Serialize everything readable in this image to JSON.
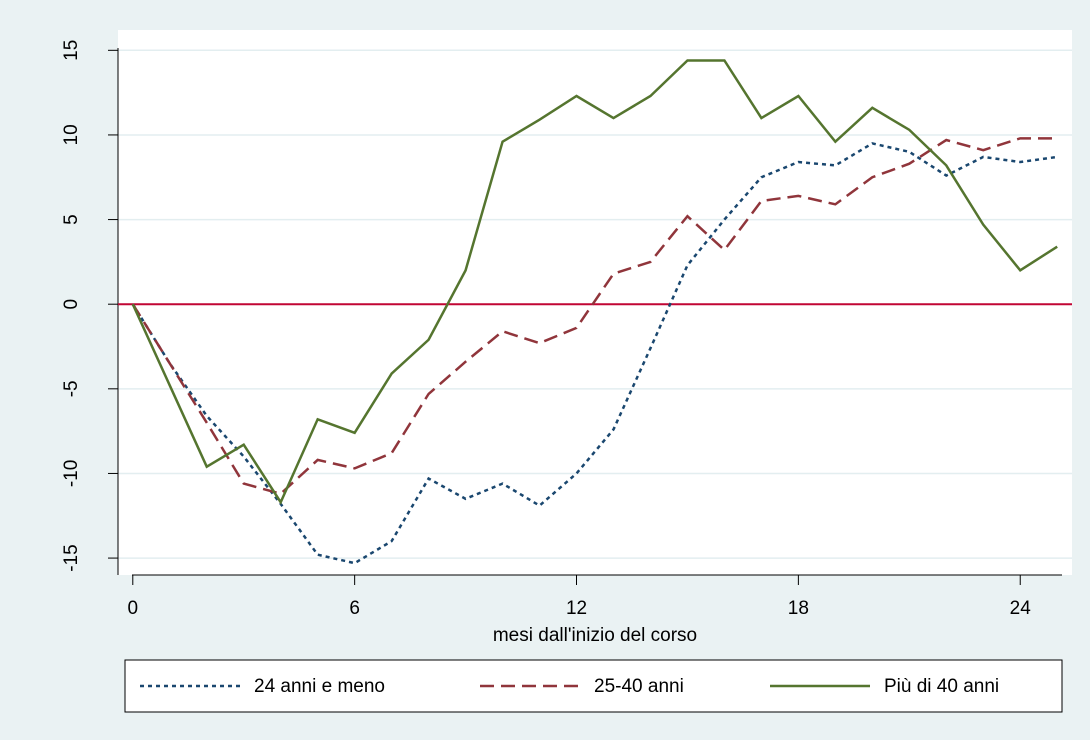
{
  "chart_data": {
    "type": "line",
    "x_label": "mesi dall'inizio del corso",
    "x": [
      0,
      1,
      2,
      3,
      4,
      5,
      6,
      7,
      8,
      9,
      10,
      11,
      12,
      13,
      14,
      15,
      16,
      17,
      18,
      19,
      20,
      21,
      22,
      23,
      24,
      25
    ],
    "series": [
      {
        "name": "24 anni e meno",
        "color": "#1a476f",
        "dash": "dotted",
        "values": [
          0,
          -3.5,
          -6.6,
          -9,
          -11.8,
          -14.8,
          -15.3,
          -14,
          -10.3,
          -11.5,
          -10.6,
          -11.9,
          -10,
          -7.4,
          -2.6,
          2.3,
          5,
          7.5,
          8.4,
          8.2,
          9.5,
          9,
          7.6,
          8.7,
          8.4,
          8.7
        ]
      },
      {
        "name": "25-40 anni",
        "color": "#90353b",
        "dash": "dashed",
        "values": [
          0,
          -3.5,
          -7,
          -10.6,
          -11.2,
          -9.2,
          -9.7,
          -8.8,
          -5.3,
          -3.4,
          -1.6,
          -2.3,
          -1.4,
          1.8,
          2.5,
          5.2,
          3.2,
          6.1,
          6.4,
          5.9,
          7.5,
          8.3,
          9.7,
          9.1,
          9.8,
          9.8
        ]
      },
      {
        "name": "Più di 40 anni",
        "color": "#55752f",
        "dash": "solid",
        "values": [
          0,
          -4.8,
          -9.6,
          -8.3,
          -11.7,
          -6.8,
          -7.6,
          -4.1,
          -2.1,
          2,
          9.6,
          10.9,
          12.3,
          11,
          12.3,
          14.4,
          14.4,
          11,
          12.3,
          9.6,
          11.6,
          10.3,
          8.2,
          4.7,
          2,
          3.4
        ]
      }
    ],
    "reference_line": 0,
    "reference_color": "#c10534",
    "xlim": [
      -0.4,
      25.4
    ],
    "xticks": [
      0,
      6,
      12,
      18,
      24
    ],
    "ylim": [
      -16,
      16.2
    ],
    "yticks": [
      -15,
      -10,
      -5,
      0,
      5,
      10,
      15
    ],
    "grid": true,
    "legend": "bottom"
  }
}
